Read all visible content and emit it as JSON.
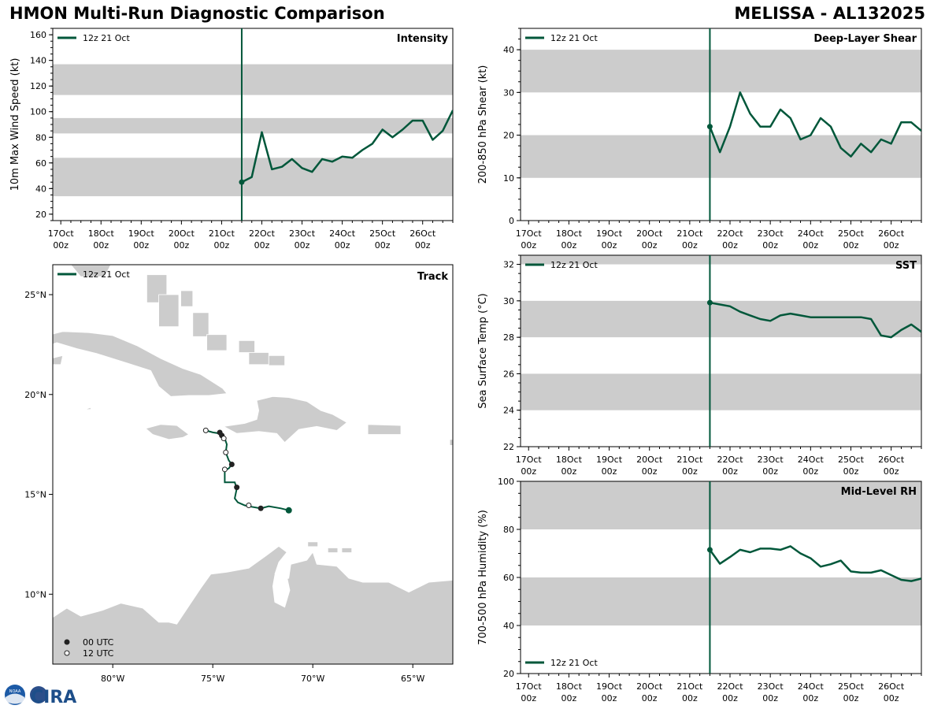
{
  "header": {
    "title_left": "HMON Multi-Run Diagnostic Comparison",
    "title_right": "MELISSA - AL132025"
  },
  "logo": {
    "text": "CIRA",
    "badge": "NOAA"
  },
  "colors": {
    "series": "#00573a",
    "band": "#cccccc",
    "land": "#cccccc"
  },
  "run_label": "12z 21 Oct",
  "x_ticks": [
    "17Oct",
    "18Oct",
    "19Oct",
    "20Oct",
    "21Oct",
    "22Oct",
    "23Oct",
    "24Oct",
    "25Oct",
    "26Oct"
  ],
  "x_tick_sub": "00z",
  "chart_data": [
    {
      "id": "intensity",
      "type": "line",
      "title": "Intensity",
      "ylabel": "10m Max Wind Speed (kt)",
      "ylim": [
        15,
        165
      ],
      "xlim": [
        16.8,
        26.75
      ],
      "yticks": [
        20,
        40,
        60,
        80,
        100,
        120,
        140,
        160
      ],
      "bands": [
        [
          34,
          64
        ],
        [
          83,
          95
        ],
        [
          113,
          137
        ]
      ],
      "vline": 21.5,
      "legend": "top-left",
      "series": [
        {
          "name": "12z 21 Oct",
          "x": [
            21.5,
            21.75,
            22.0,
            22.25,
            22.5,
            22.75,
            23.0,
            23.25,
            23.5,
            23.75,
            24.0,
            24.25,
            24.5,
            24.75,
            25.0,
            25.25,
            25.5,
            25.75,
            26.0,
            26.25,
            26.5,
            26.75
          ],
          "values": [
            45,
            49,
            84,
            55,
            57,
            63,
            56,
            53,
            63,
            61,
            65,
            64,
            70,
            75,
            86,
            80,
            86,
            93,
            93,
            78,
            85,
            101
          ]
        }
      ]
    },
    {
      "id": "shear",
      "type": "line",
      "title": "Deep-Layer Shear",
      "ylabel": "200-850 hPa Shear (kt)",
      "ylim": [
        0,
        45
      ],
      "xlim": [
        16.8,
        26.75
      ],
      "yticks": [
        0,
        10,
        20,
        30,
        40
      ],
      "bands": [
        [
          10,
          20
        ],
        [
          30,
          40
        ]
      ],
      "vline": 21.5,
      "legend": "top-left",
      "series": [
        {
          "name": "12z 21 Oct",
          "x": [
            21.5,
            21.75,
            22.0,
            22.25,
            22.5,
            22.75,
            23.0,
            23.25,
            23.5,
            23.75,
            24.0,
            24.25,
            24.5,
            24.75,
            25.0,
            25.25,
            25.5,
            25.75,
            26.0,
            26.25,
            26.5,
            26.75
          ],
          "values": [
            22,
            16,
            22,
            30,
            25,
            22,
            22,
            26,
            24,
            19,
            20,
            24,
            22,
            17,
            15,
            18,
            16,
            19,
            18,
            23,
            23,
            21
          ]
        }
      ]
    },
    {
      "id": "sst",
      "type": "line",
      "title": "SST",
      "ylabel": "Sea Surface Temp (°C)",
      "ylim": [
        22,
        32.5
      ],
      "xlim": [
        16.8,
        26.75
      ],
      "yticks": [
        22,
        24,
        26,
        28,
        30,
        32
      ],
      "bands": [
        [
          24,
          26
        ],
        [
          28,
          30
        ],
        [
          32,
          34
        ]
      ],
      "vline": 21.5,
      "legend": "top-left",
      "series": [
        {
          "name": "12z 21 Oct",
          "x": [
            21.5,
            21.75,
            22.0,
            22.25,
            22.5,
            22.75,
            23.0,
            23.25,
            23.5,
            23.75,
            24.0,
            24.25,
            24.5,
            24.75,
            25.0,
            25.25,
            25.5,
            25.75,
            26.0,
            26.25,
            26.5,
            26.75
          ],
          "values": [
            29.9,
            29.8,
            29.7,
            29.4,
            29.2,
            29.0,
            28.9,
            29.2,
            29.3,
            29.2,
            29.1,
            29.1,
            29.1,
            29.1,
            29.1,
            29.1,
            29.0,
            28.1,
            28.0,
            28.4,
            28.7,
            28.3
          ]
        }
      ]
    },
    {
      "id": "rh",
      "type": "line",
      "title": "Mid-Level RH",
      "ylabel": "700-500 hPa Humidity (%)",
      "ylim": [
        20,
        100
      ],
      "xlim": [
        16.8,
        26.75
      ],
      "yticks": [
        20,
        40,
        60,
        80,
        100
      ],
      "bands": [
        [
          40,
          60
        ],
        [
          80,
          100
        ]
      ],
      "vline": 21.5,
      "legend": "bottom-left",
      "series": [
        {
          "name": "12z 21 Oct",
          "x": [
            21.5,
            21.75,
            22.0,
            22.25,
            22.5,
            22.75,
            23.0,
            23.25,
            23.5,
            23.75,
            24.0,
            24.25,
            24.5,
            24.75,
            25.0,
            25.25,
            25.5,
            25.75,
            26.0,
            26.25,
            26.5,
            26.75
          ],
          "values": [
            71.5,
            65.7,
            68.5,
            71.5,
            70.5,
            72.0,
            72.0,
            71.5,
            73.0,
            70.0,
            68.0,
            64.5,
            65.5,
            67.0,
            62.5,
            62.0,
            62.0,
            63.0,
            61.0,
            59.0,
            58.5,
            59.5
          ]
        }
      ]
    }
  ],
  "track": {
    "title": "Track",
    "legend": "12z 21 Oct",
    "lon_range": [
      -83,
      -63
    ],
    "lat_range": [
      6.5,
      26.5
    ],
    "lon_ticks": [
      "80°W",
      "75°W",
      "70°W",
      "65°W"
    ],
    "lat_ticks": [
      "25°N",
      "20°N",
      "15°N",
      "10°N"
    ],
    "marker_legend": {
      "filled": "00 UTC",
      "open": "12 UTC"
    },
    "path": [
      [
        -71.2,
        14.2
      ],
      [
        -71.6,
        14.3
      ],
      [
        -72.2,
        14.4
      ],
      [
        -72.6,
        14.3
      ],
      [
        -73.2,
        14.4
      ],
      [
        -73.4,
        14.45
      ],
      [
        -73.75,
        14.6
      ],
      [
        -73.9,
        14.8
      ],
      [
        -73.8,
        15.3
      ],
      [
        -73.9,
        15.6
      ],
      [
        -74.4,
        15.6
      ],
      [
        -74.4,
        16.2
      ],
      [
        -74.2,
        16.3
      ],
      [
        -74.05,
        16.5
      ],
      [
        -74.2,
        16.7
      ],
      [
        -74.35,
        17.1
      ],
      [
        -74.3,
        17.5
      ],
      [
        -74.4,
        17.8
      ],
      [
        -74.5,
        17.85
      ],
      [
        -74.65,
        18.05
      ],
      [
        -75.0,
        18.1
      ],
      [
        -75.35,
        18.2
      ]
    ],
    "markers_00": [
      [
        -71.2,
        14.2
      ],
      [
        -72.6,
        14.3
      ],
      [
        -73.8,
        15.35
      ],
      [
        -74.05,
        16.5
      ],
      [
        -74.55,
        17.95
      ],
      [
        -74.65,
        18.1
      ]
    ],
    "markers_12": [
      [
        -73.2,
        14.45
      ],
      [
        -74.4,
        16.25
      ],
      [
        -74.35,
        17.1
      ],
      [
        -74.45,
        17.8
      ],
      [
        -75.35,
        18.2
      ]
    ]
  }
}
